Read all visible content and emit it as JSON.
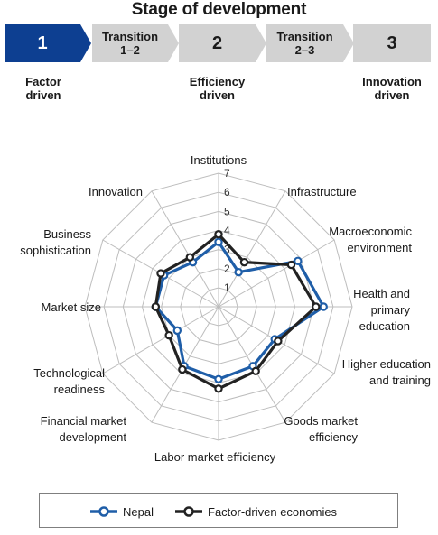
{
  "header": {
    "title": "Stage of development",
    "stages": [
      {
        "label": "1",
        "active": true
      },
      {
        "label": "Transition\n1–2",
        "active": false
      },
      {
        "label": "2",
        "active": false
      },
      {
        "label": "Transition\n2–3",
        "active": false
      },
      {
        "label": "3",
        "active": false
      }
    ],
    "stage_labels": [
      "Factor\ndriven",
      "Efficiency\ndriven",
      "Innovation\ndriven"
    ]
  },
  "colors": {
    "active_stage": "#0d3f91",
    "inactive_stage": "#d2d2d2",
    "nepal": "#1f5ea8",
    "factor_driven": "#222222",
    "grid": "#bdbdbd"
  },
  "chart_data": {
    "type": "radar",
    "axes": [
      "Institutions",
      "Infrastructure",
      "Macroeconomic\nenvironment",
      "Health and\nprimary\neducation",
      "Higher education\nand training",
      "Goods market\nefficiency",
      "Labor market efficiency",
      "Financial market\ndevelopment",
      "Technological\nreadiness",
      "Market size",
      "Business\nsophistication",
      "Innovation"
    ],
    "ticks": [
      "1",
      "2",
      "3",
      "4",
      "5",
      "6",
      "7"
    ],
    "range": [
      1,
      7
    ],
    "series": [
      {
        "name": "Nepal",
        "values": [
          3.4,
          2.1,
          4.8,
          5.5,
          3.4,
          3.6,
          3.8,
          3.6,
          2.5,
          3.3,
          3.3,
          2.7
        ]
      },
      {
        "name": "Factor-driven economies",
        "values": [
          3.8,
          2.7,
          4.4,
          5.1,
          3.6,
          3.9,
          4.3,
          3.8,
          3.0,
          3.3,
          3.5,
          3.0
        ]
      }
    ],
    "legend_position": "bottom"
  },
  "legend": {
    "items": [
      "Nepal",
      "Factor-driven economies"
    ]
  }
}
